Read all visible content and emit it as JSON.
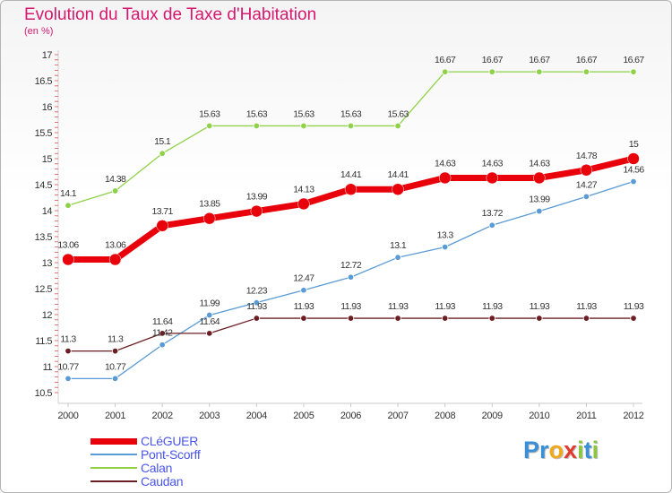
{
  "title": "Evolution du Taux de Taxe d'Habitation",
  "subtitle": "(en %)",
  "chart_data": {
    "type": "line",
    "x": [
      "2000",
      "2001",
      "2002",
      "2003",
      "2004",
      "2005",
      "2006",
      "2007",
      "2008",
      "2009",
      "2010",
      "2011",
      "2012"
    ],
    "ylim": [
      10.5,
      17
    ],
    "yticks": [
      "10.5",
      "11",
      "11.5",
      "12",
      "12.5",
      "13",
      "13.5",
      "14",
      "14.5",
      "15",
      "15.5",
      "16",
      "16.5",
      "17"
    ],
    "grid": false,
    "legend_position": "bottom-left",
    "series": [
      {
        "name": "CLéGUER",
        "color": "#e8000b",
        "values": [
          13.06,
          13.06,
          13.71,
          13.85,
          13.99,
          14.13,
          14.41,
          14.41,
          14.63,
          14.63,
          14.63,
          14.78,
          15
        ],
        "labels": [
          "13.06",
          "13.06",
          "13.71",
          "13.85",
          "13.99",
          "14.13",
          "14.41",
          "14.41",
          "14.63",
          "14.63",
          "14.63",
          "14.78",
          "15"
        ]
      },
      {
        "name": "Pont-Scorff",
        "color": "#5b9bd5",
        "values": [
          10.77,
          10.77,
          11.42,
          11.99,
          12.23,
          12.47,
          12.72,
          13.1,
          13.3,
          13.72,
          13.99,
          14.27,
          14.56
        ],
        "labels": [
          "10.77",
          "10.77",
          "11.42",
          "11.99",
          "12.23",
          "12.47",
          "12.72",
          "13.1",
          "13.3",
          "13.72",
          "13.99",
          "14.27",
          "14.56"
        ]
      },
      {
        "name": "Calan",
        "color": "#8fd24a",
        "values": [
          14.1,
          14.38,
          15.1,
          15.63,
          15.63,
          15.63,
          15.63,
          15.63,
          16.67,
          16.67,
          16.67,
          16.67,
          16.67
        ],
        "labels": [
          "14.1",
          "14.38",
          "15.1",
          "15.63",
          "15.63",
          "15.63",
          "15.63",
          "15.63",
          "16.67",
          "16.67",
          "16.67",
          "16.67",
          "16.67"
        ]
      },
      {
        "name": "Caudan",
        "color": "#6b1f24",
        "values": [
          11.3,
          11.3,
          11.64,
          11.64,
          11.93,
          11.93,
          11.93,
          11.93,
          11.93,
          11.93,
          11.93,
          11.93,
          11.93
        ],
        "labels": [
          "11.3",
          "11.3",
          "11.64",
          "11.64",
          "11.93",
          "11.93",
          "11.93",
          "11.93",
          "11.93",
          "11.93",
          "11.93",
          "11.93",
          "11.93"
        ]
      }
    ]
  },
  "logo": {
    "letters": [
      "P",
      "r",
      "o",
      "x",
      "i",
      "t",
      "i"
    ],
    "colors": [
      "#3a8fd6",
      "#3a8fd6",
      "#f2a81d",
      "#e23b2e",
      "#8cc63f",
      "#3a8fd6",
      "#8cc63f"
    ]
  }
}
